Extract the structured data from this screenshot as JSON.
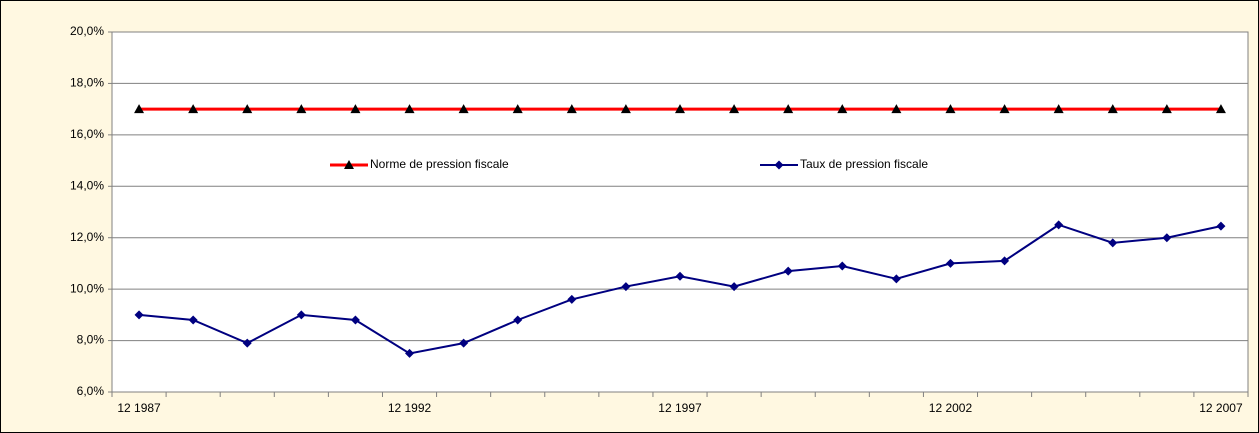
{
  "chart_data": {
    "type": "line",
    "categories": [
      "12 1987",
      null,
      null,
      null,
      null,
      "12 1992",
      null,
      null,
      null,
      null,
      "12 1997",
      null,
      null,
      null,
      null,
      "12 2002",
      null,
      null,
      null,
      null,
      "12 2007"
    ],
    "series": [
      {
        "name": "Norme de pression fiscale",
        "color": "#ff0000",
        "marker": "triangle",
        "marker_color": "#000000",
        "values": [
          17,
          17,
          17,
          17,
          17,
          17,
          17,
          17,
          17,
          17,
          17,
          17,
          17,
          17,
          17,
          17,
          17,
          17,
          17,
          17,
          17
        ]
      },
      {
        "name": "Taux de pression fiscale",
        "color": "#000080",
        "marker": "diamond",
        "marker_color": "#000080",
        "values": [
          9.0,
          8.8,
          7.9,
          9.0,
          8.8,
          7.5,
          7.9,
          8.8,
          9.6,
          10.1,
          10.5,
          10.1,
          10.7,
          10.9,
          10.4,
          11.0,
          11.1,
          12.5,
          11.8,
          12.0,
          12.45
        ]
      }
    ],
    "ylim": [
      6,
      20
    ],
    "yticks": [
      {
        "value": 6,
        "label": "6,0%"
      },
      {
        "value": 8,
        "label": "8,0%"
      },
      {
        "value": 10,
        "label": "10,0%"
      },
      {
        "value": 12,
        "label": "12,0%"
      },
      {
        "value": 14,
        "label": "14,0%"
      },
      {
        "value": 16,
        "label": "16,0%"
      },
      {
        "value": 18,
        "label": "18,0%"
      },
      {
        "value": 20,
        "label": "20,0%"
      }
    ],
    "grid": true,
    "legend": "top"
  }
}
